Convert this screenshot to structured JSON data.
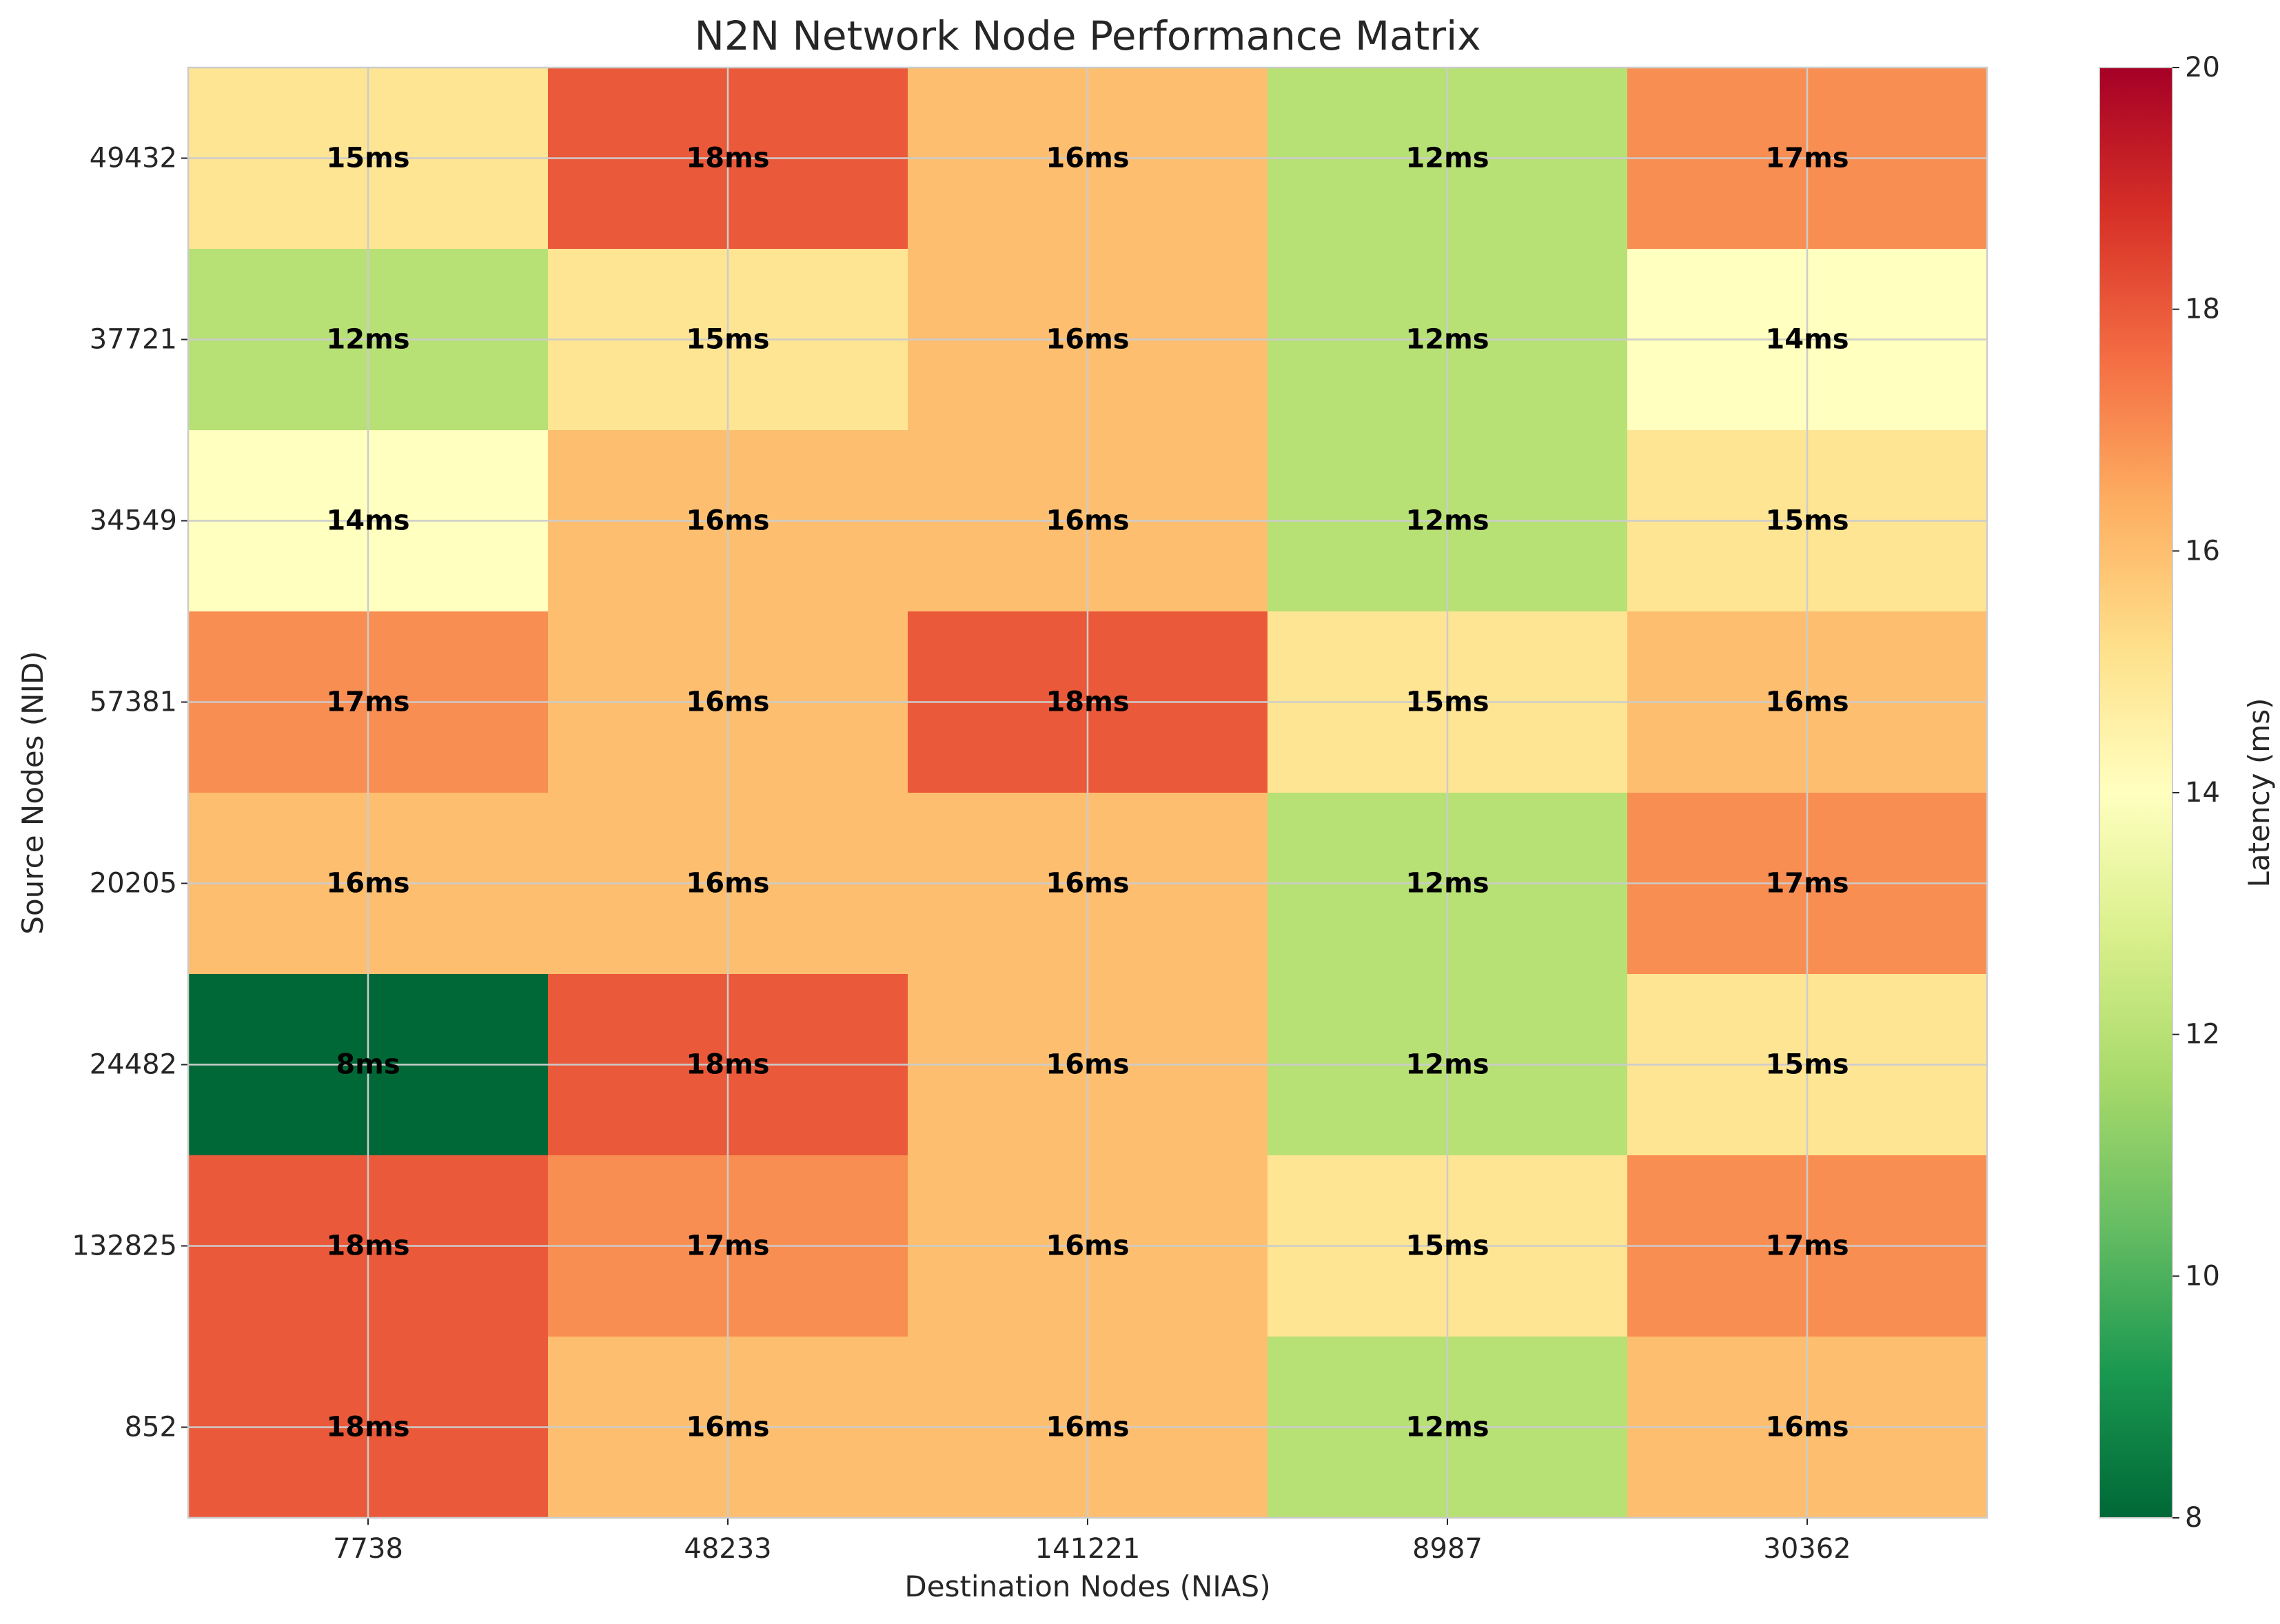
{
  "chart_data": {
    "type": "heatmap",
    "title": "N2N Network Node Performance Matrix",
    "xlabel": "Destination Nodes (NIAS)",
    "ylabel": "Source Nodes (NID)",
    "x_categories": [
      "7738",
      "48233",
      "141221",
      "8987",
      "30362"
    ],
    "y_categories": [
      "49432",
      "37721",
      "34549",
      "57381",
      "20205",
      "24482",
      "132825",
      "852"
    ],
    "values": [
      [
        15,
        18,
        16,
        12,
        17
      ],
      [
        12,
        15,
        16,
        12,
        14
      ],
      [
        14,
        16,
        16,
        12,
        15
      ],
      [
        17,
        16,
        18,
        15,
        16
      ],
      [
        16,
        16,
        16,
        12,
        17
      ],
      [
        8,
        18,
        16,
        12,
        15
      ],
      [
        18,
        17,
        16,
        15,
        17
      ],
      [
        18,
        16,
        16,
        12,
        16
      ]
    ],
    "value_suffix": "ms",
    "colorbar": {
      "label": "Latency (ms)",
      "range": [
        8,
        20
      ],
      "ticks": [
        "8",
        "10",
        "12",
        "14",
        "16",
        "18",
        "20"
      ],
      "colormap": "RdYlGn_r"
    },
    "grid": true
  },
  "colors": {
    "title": "#262626",
    "grid": "#cccccc",
    "annotation": "#000000"
  }
}
